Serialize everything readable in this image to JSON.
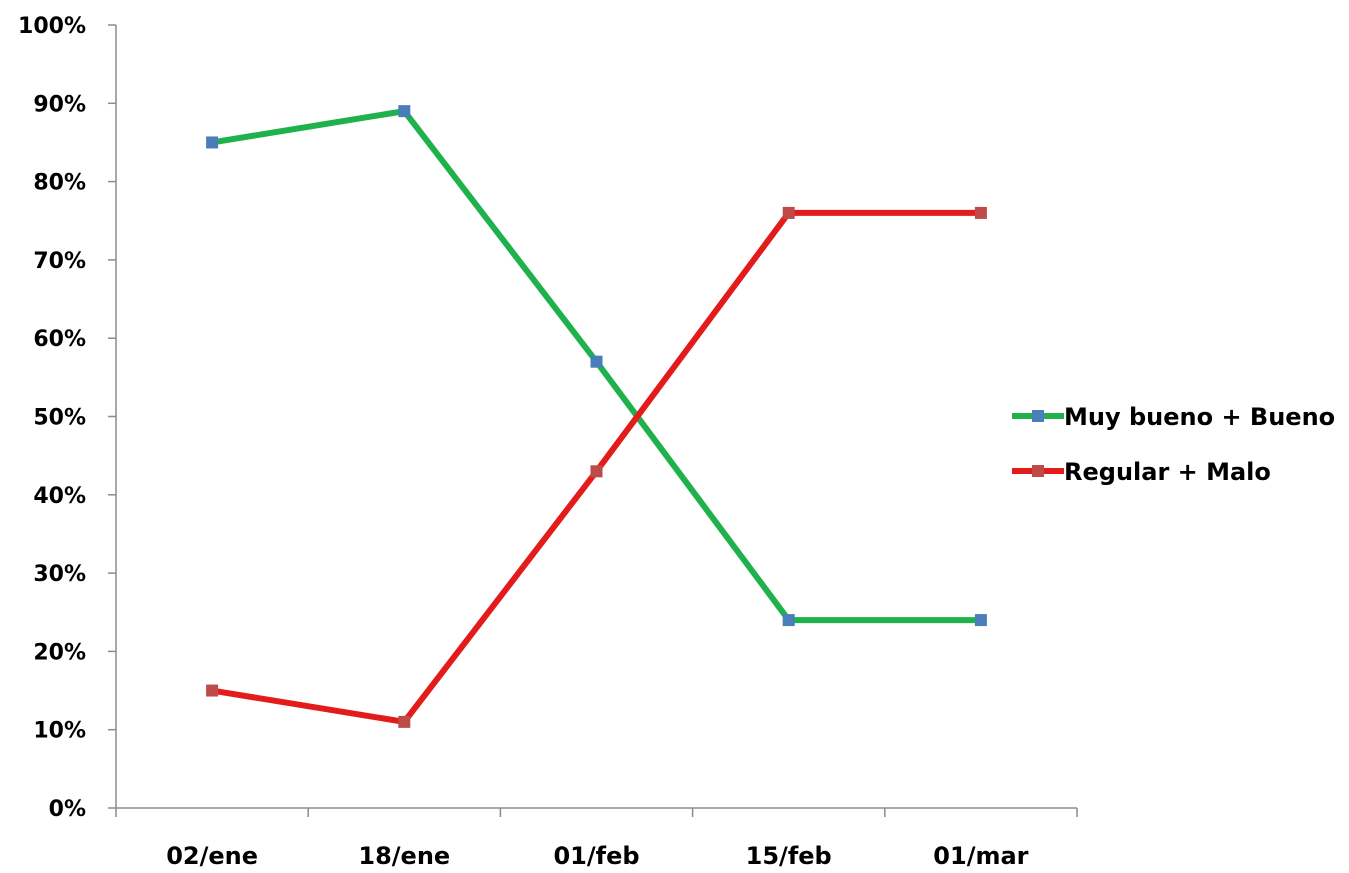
{
  "chart_data": {
    "type": "line",
    "title": "",
    "xlabel": "",
    "ylabel": "",
    "categories": [
      "02/ene",
      "18/ene",
      "01/feb",
      "15/feb",
      "01/mar"
    ],
    "ylim": [
      0,
      100
    ],
    "yticks": [
      0,
      10,
      20,
      30,
      40,
      50,
      60,
      70,
      80,
      90,
      100
    ],
    "ytick_labels": [
      "0%",
      "10%",
      "20%",
      "30%",
      "40%",
      "50%",
      "60%",
      "70%",
      "80%",
      "90%",
      "100%"
    ],
    "grid": false,
    "legend_position": "right",
    "series": [
      {
        "name": "Muy bueno + Bueno",
        "values": [
          85,
          89,
          57,
          24,
          24
        ],
        "line_color": "#1EB14C",
        "marker_color": "#4A7EBB"
      },
      {
        "name": "Regular + Malo",
        "values": [
          15,
          11,
          43,
          76,
          76
        ],
        "line_color": "#E31B1B",
        "marker_color": "#BE4B48"
      }
    ]
  }
}
